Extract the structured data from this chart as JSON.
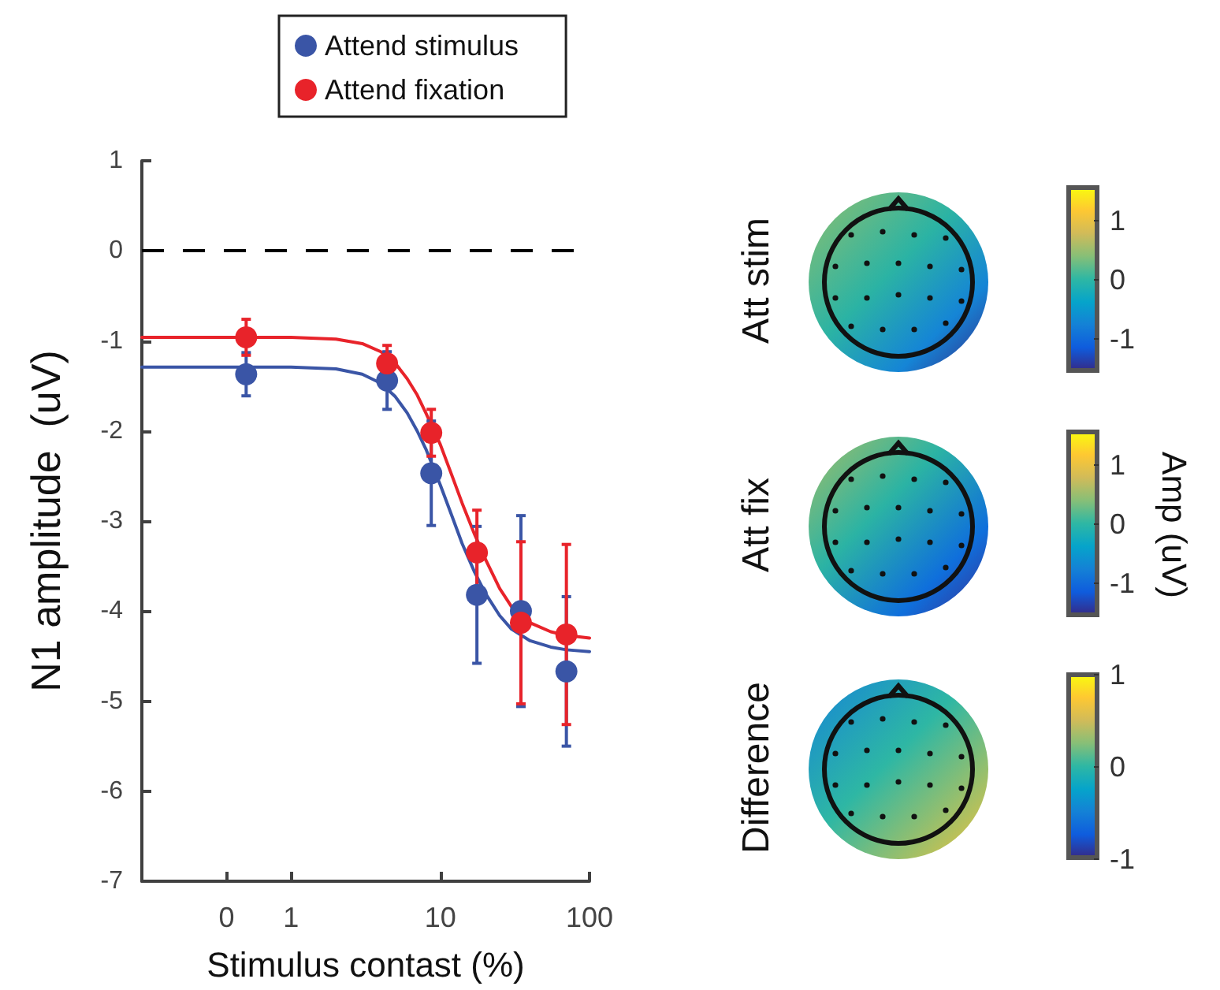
{
  "chart_data": [
    {
      "type": "scatter",
      "xlabel": "Stimulus contast (%)",
      "ylabel": "N1 amplitude  (uV)",
      "log": "x",
      "xlim": [
        0.1,
        100
      ],
      "xticks": [
        {
          "value": 0.37,
          "label": "0"
        },
        1,
        10,
        100
      ],
      "ylim": [
        -7,
        1
      ],
      "yticks": [
        -7,
        -6,
        -5,
        -4,
        -3,
        -2,
        -1,
        0,
        1
      ],
      "grid": false,
      "legend": "top",
      "marker": "circle",
      "ref_lines": [
        {
          "axis": "y",
          "value": 0,
          "color": "#000000",
          "line_style": "dashed"
        }
      ],
      "series": [
        {
          "type": "line",
          "color": "#3a55a6",
          "marker": "none",
          "x": [
            0.1,
            1,
            2,
            3,
            4,
            5,
            6,
            7,
            8,
            10,
            12,
            14,
            17,
            20,
            25,
            30,
            40,
            55,
            70,
            100
          ],
          "values": [
            -1.29,
            -1.29,
            -1.31,
            -1.37,
            -1.47,
            -1.62,
            -1.8,
            -2.0,
            -2.2,
            -2.6,
            -2.95,
            -3.25,
            -3.57,
            -3.8,
            -4.05,
            -4.2,
            -4.33,
            -4.4,
            -4.43,
            -4.45
          ]
        },
        {
          "type": "line",
          "color": "#e8232a",
          "marker": "none",
          "x": [
            0.1,
            1,
            2,
            3,
            4,
            5,
            6,
            7,
            8,
            10,
            12,
            14,
            17,
            20,
            25,
            30,
            40,
            55,
            70,
            100
          ],
          "values": [
            -0.96,
            -0.96,
            -0.98,
            -1.03,
            -1.12,
            -1.25,
            -1.42,
            -1.6,
            -1.8,
            -2.15,
            -2.5,
            -2.8,
            -3.15,
            -3.42,
            -3.75,
            -3.95,
            -4.13,
            -4.23,
            -4.27,
            -4.3
          ]
        },
        {
          "name": "Attend stimulus",
          "type": "scatter",
          "color": "#3a55a6",
          "x": [
            0.5,
            4.4,
            8.7,
            17.6,
            34.7,
            70
          ],
          "values": [
            -1.37,
            -1.44,
            -2.47,
            -3.82,
            -4.0,
            -4.67
          ],
          "errors": [
            0.24,
            0.32,
            0.58,
            0.76,
            1.06,
            0.83
          ]
        },
        {
          "name": "Attend fixation",
          "type": "scatter",
          "color": "#e8232a",
          "x": [
            0.5,
            4.4,
            8.7,
            17.6,
            34.7,
            70
          ],
          "values": [
            -0.96,
            -1.25,
            -2.02,
            -3.35,
            -4.13,
            -4.26
          ],
          "errors": [
            0.2,
            0.2,
            0.26,
            0.47,
            0.9,
            1.0
          ]
        }
      ]
    },
    {
      "type": "other",
      "title": "Att stim",
      "annotations": [
        "1",
        "0",
        "-1"
      ]
    },
    {
      "type": "other",
      "title": "Att fix",
      "clabel": "Amp (uV)",
      "annotations": [
        "1",
        "0",
        "-1"
      ]
    },
    {
      "type": "other",
      "title": "Difference",
      "annotations": [
        "1",
        "0",
        "-1"
      ]
    }
  ]
}
